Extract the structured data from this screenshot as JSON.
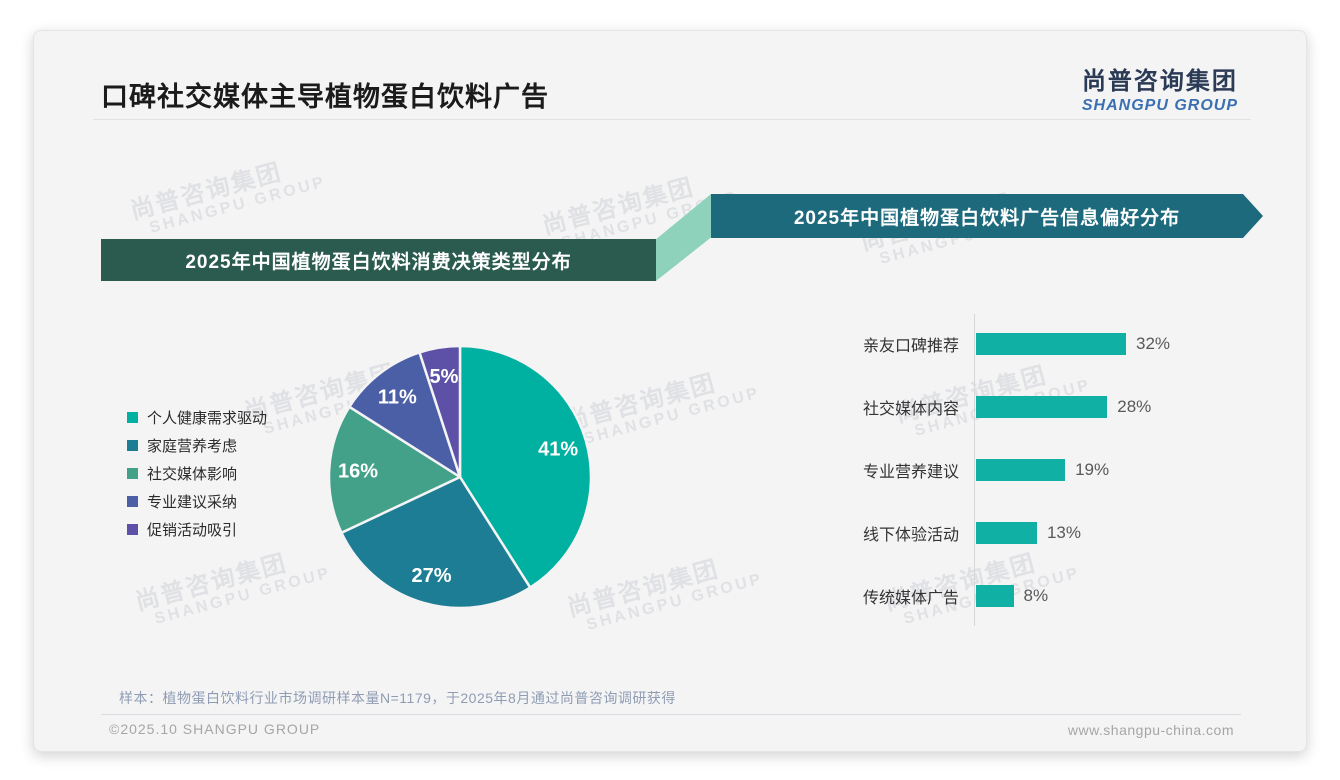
{
  "page": {
    "title": "口碑社交媒体主导植物蛋白饮料广告",
    "logo": {
      "cn": "尚普咨询集团",
      "en": "SHANGPU GROUP"
    },
    "watermark": {
      "cn": "尚普咨询集团",
      "en": "SHANGPU GROUP"
    },
    "footnote": "样本：植物蛋白饮料行业市场调研样本量N=1179，于2025年8月通过尚普咨询调研获得",
    "footer_left": "©2025.10 SHANGPU GROUP",
    "footer_right": "www.shangpu-china.com"
  },
  "colors": {
    "banner_left": "#2b5b4e",
    "banner_right": "#1d6a7d",
    "banner_connector": "#8fd2bc",
    "bar": "#10b0a5",
    "logo_cn": "#2b3a55",
    "logo_en": "#3a6fb0"
  },
  "chart_data": [
    {
      "type": "pie",
      "title": "2025年中国植物蛋白饮料消费决策类型分布",
      "categories": [
        "个人健康需求驱动",
        "家庭营养考虑",
        "社交媒体影响",
        "专业建议采纳",
        "促销活动吸引"
      ],
      "values": [
        41,
        27,
        16,
        11,
        5
      ],
      "labels": [
        "41%",
        "27%",
        "16%",
        "11%",
        "5%"
      ],
      "colors": [
        "#00b0a0",
        "#1d7d94",
        "#44a189",
        "#4a5fa5",
        "#5d51a7"
      ],
      "legend_position": "left",
      "start_angle_deg": 0,
      "direction": "clockwise"
    },
    {
      "type": "bar",
      "title": "2025年中国植物蛋白饮料广告信息偏好分布",
      "orientation": "horizontal",
      "categories": [
        "亲友口碑推荐",
        "社交媒体内容",
        "专业营养建议",
        "线下体验活动",
        "传统媒体广告"
      ],
      "values": [
        32,
        28,
        19,
        13,
        8
      ],
      "value_labels": [
        "32%",
        "28%",
        "19%",
        "13%",
        "8%"
      ],
      "bar_color": "#10b0a5",
      "xlim": [
        0,
        32
      ],
      "grid": false,
      "axis_line": "left"
    }
  ]
}
